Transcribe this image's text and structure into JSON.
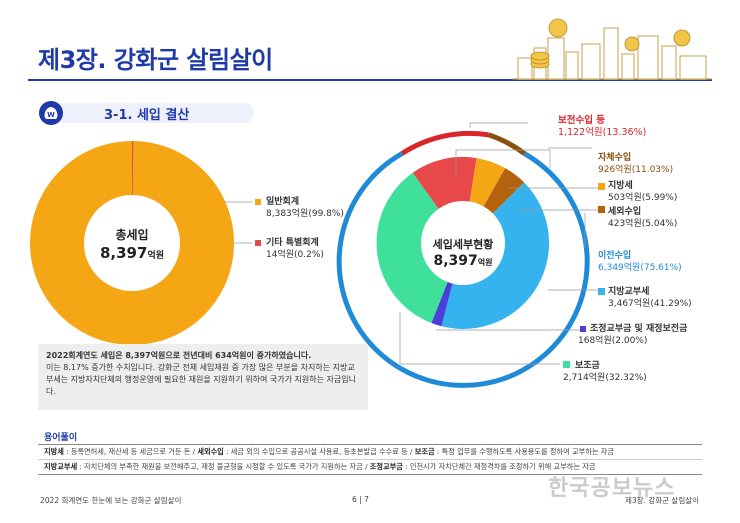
{
  "header": {
    "chapter_title": "제3장. 강화군 살림살이"
  },
  "section": {
    "title": "3-1. 세입 결산",
    "icon": "money-bag-icon"
  },
  "left_chart": {
    "center_title": "총세입",
    "center_value": "8,397",
    "center_unit": "억원",
    "items": [
      {
        "name": "일반회계",
        "value": "8,383억원(99.8%)",
        "color": "#f5a614"
      },
      {
        "name": "기타 특별회계",
        "value": "14억원(0.2%)",
        "color": "#e14b4b"
      }
    ]
  },
  "right_chart": {
    "center_title": "세입세부현황",
    "center_value": "8,397",
    "center_unit": "억원",
    "outer": [
      {
        "name": "보전수입 등",
        "value": "1,122억원(13.36%)",
        "color": "#d9262b"
      },
      {
        "name": "자체수입",
        "value": "926억원(11.03%)",
        "color": "#8a4f0e"
      },
      {
        "name": "이전수입",
        "value": "6,349억원(75.61%)",
        "color": "#1f8bd8"
      }
    ],
    "inner": [
      {
        "name": "지방세",
        "value": "503억원(5.99%)",
        "color": "#f5a614"
      },
      {
        "name": "세외수입",
        "value": "423억원(5.04%)",
        "color": "#b5620f"
      },
      {
        "name": "지방교부세",
        "value": "3,467억원(41.29%)",
        "color": "#35b3ee"
      },
      {
        "name": "조정교부금 및 재정보전금",
        "value": "168억원(2.00%)",
        "color": "#4a3fd6"
      },
      {
        "name": "보조금",
        "value": "2,714억원(32.32%)",
        "color": "#3ee09a"
      }
    ]
  },
  "summary": {
    "bold_part": "2022회계연도 세입은 8,397억원으로 전년대비 634억원이 증가하였습니다.",
    "rest": " 이는 8.17% 증가한 수치입니다. 강화군 전체 세입재원 중 가장 많은 부분을 차지하는 지방교부세는 지방자치단체의 행정운영에 필요한 재원을 지원하기 위하여 국가가 지원하는 자금입니다.",
    "line1": "2022회계연도 세입은 8,397억원으로 전년대비 634억원이 증가하였습니다. 이는",
    "line2_bold": "8.17% 증가한",
    "line2_rest": " 수치입니다. 강화군 전체 세입재원 중 가장 많은 부분을 차지하는 지방",
    "line3": "교부세는 지방자치단체의 행정운영에 필요한 재원을 지원하기 위하여 국가가 지원",
    "line4": "하는 자금입니다."
  },
  "glossary": {
    "heading": "용어풀이",
    "row1": {
      "t1": "지방세",
      "d1": " : 등록면허세, 재산세 등 세금으로 거둔 돈 / ",
      "t2": "세외수입",
      "d2": " : 세금 외의 수입으로 공공시설 사용료, 등초본발급 수수료 등 / ",
      "t3": "보조금",
      "d3": " : 특정 업무를 수행하도록 사용용도를 정하여 교부하는 자금"
    },
    "row2": {
      "t1": "지방교부세",
      "d1": " : 자치단체의 부족한 재원을 보전해주고, 재정 불균형을 시정할 수 있도록 국가가 지원하는 자금 / ",
      "t2": "조정교부금",
      "d2": " : 인천시가 자치단체간 재정격차를 조정하기 위해 교부하는 자금"
    }
  },
  "footer": {
    "left": "2022 회계연도 한눈에 보는 강화군 살림살이",
    "page": "6  |  7",
    "right": "제3장. 강화군 살림살이"
  },
  "watermark": "한국공보뉴스"
}
